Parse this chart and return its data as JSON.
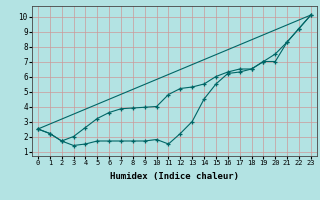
{
  "xlabel": "Humidex (Indice chaleur)",
  "background_color": "#b3e3e3",
  "grid_color": "#cc9999",
  "line_color": "#006666",
  "xlim": [
    -0.5,
    23.5
  ],
  "ylim": [
    0.7,
    10.7
  ],
  "x_ticks": [
    0,
    1,
    2,
    3,
    4,
    5,
    6,
    7,
    8,
    9,
    10,
    11,
    12,
    13,
    14,
    15,
    16,
    17,
    18,
    19,
    20,
    21,
    22,
    23
  ],
  "y_ticks": [
    1,
    2,
    3,
    4,
    5,
    6,
    7,
    8,
    9,
    10
  ],
  "series1_x": [
    0,
    1,
    2,
    3,
    4,
    5,
    6,
    7,
    8,
    9,
    10,
    11,
    12,
    13,
    14,
    15,
    16,
    17,
    18,
    19,
    20,
    21,
    22,
    23
  ],
  "series1_y": [
    2.5,
    2.2,
    1.7,
    1.4,
    1.5,
    1.7,
    1.7,
    1.7,
    1.7,
    1.7,
    1.8,
    1.5,
    2.2,
    3.0,
    4.5,
    5.5,
    6.2,
    6.3,
    6.5,
    7.0,
    7.5,
    8.3,
    9.2,
    10.1
  ],
  "series2_x": [
    0,
    1,
    2,
    3,
    4,
    5,
    6,
    7,
    8,
    9,
    10,
    11,
    12,
    13,
    14,
    15,
    16,
    17,
    18,
    19,
    20,
    21,
    22,
    23
  ],
  "series2_y": [
    2.5,
    2.2,
    1.7,
    2.0,
    2.6,
    3.2,
    3.6,
    3.85,
    3.9,
    3.95,
    4.0,
    4.8,
    5.2,
    5.3,
    5.5,
    6.0,
    6.3,
    6.5,
    6.5,
    7.0,
    7.0,
    8.3,
    9.2,
    10.1
  ],
  "series3_x": [
    0,
    23
  ],
  "series3_y": [
    2.5,
    10.1
  ]
}
